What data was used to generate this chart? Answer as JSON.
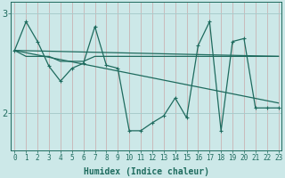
{
  "xlabel": "Humidex (Indice chaleur)",
  "bg_color": "#cce8e8",
  "line_color": "#1e6b5e",
  "vgrid_color": "#c8a8a8",
  "hgrid_color": "#a8cccc",
  "x_ticks": [
    0,
    1,
    2,
    3,
    4,
    5,
    6,
    7,
    8,
    9,
    10,
    11,
    12,
    13,
    14,
    15,
    16,
    17,
    18,
    19,
    20,
    21,
    22,
    23
  ],
  "y_ticks": [
    2,
    3
  ],
  "ylim": [
    1.62,
    3.12
  ],
  "xlim": [
    -0.3,
    23.3
  ],
  "series1": [
    2.63,
    2.92,
    2.72,
    2.47,
    2.32,
    2.45,
    2.5,
    2.87,
    2.48,
    2.45,
    1.82,
    1.82,
    1.9,
    1.97,
    2.15,
    1.95,
    2.68,
    2.92,
    1.82,
    2.72,
    2.75,
    2.05,
    2.05,
    2.05
  ],
  "series2": [
    2.63,
    2.57,
    2.57,
    2.57,
    2.52,
    2.52,
    2.52,
    2.57,
    2.57,
    2.57,
    2.57,
    2.57,
    2.57,
    2.57,
    2.57,
    2.57,
    2.57,
    2.57,
    2.57,
    2.57,
    2.57,
    2.57,
    2.57,
    2.57
  ],
  "series3_x": [
    0,
    23
  ],
  "series3_y": [
    2.63,
    2.57
  ],
  "series4_x": [
    0,
    23
  ],
  "series4_y": [
    2.63,
    2.1
  ],
  "lw": 0.9,
  "ms": 3.5,
  "tick_fontsize": 5.5,
  "xlabel_fontsize": 7.0
}
